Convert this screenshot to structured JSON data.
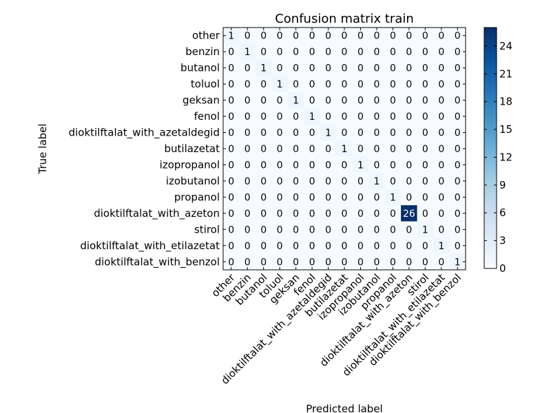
{
  "chart_data": {
    "type": "heatmap",
    "title": "Confusion matrix train",
    "xlabel": "Predicted label",
    "ylabel": "True label",
    "labels": [
      "other",
      "benzin",
      "butanol",
      "toluol",
      "geksan",
      "fenol",
      "dioktilftalat_with_azetaldegid",
      "butilazetat",
      "izopropanol",
      "izobutanol",
      "propanol",
      "dioktilftalat_with_azeton",
      "stirol",
      "dioktilftalat_with_etilazetat",
      "dioktilftalat_with_benzol"
    ],
    "matrix": [
      [
        1,
        0,
        0,
        0,
        0,
        0,
        0,
        0,
        0,
        0,
        0,
        0,
        0,
        0,
        0
      ],
      [
        0,
        1,
        0,
        0,
        0,
        0,
        0,
        0,
        0,
        0,
        0,
        0,
        0,
        0,
        0
      ],
      [
        0,
        0,
        1,
        0,
        0,
        0,
        0,
        0,
        0,
        0,
        0,
        0,
        0,
        0,
        0
      ],
      [
        0,
        0,
        0,
        1,
        0,
        0,
        0,
        0,
        0,
        0,
        0,
        0,
        0,
        0,
        0
      ],
      [
        0,
        0,
        0,
        0,
        1,
        0,
        0,
        0,
        0,
        0,
        0,
        0,
        0,
        0,
        0
      ],
      [
        0,
        0,
        0,
        0,
        0,
        1,
        0,
        0,
        0,
        0,
        0,
        0,
        0,
        0,
        0
      ],
      [
        0,
        0,
        0,
        0,
        0,
        0,
        1,
        0,
        0,
        0,
        0,
        0,
        0,
        0,
        0
      ],
      [
        0,
        0,
        0,
        0,
        0,
        0,
        0,
        1,
        0,
        0,
        0,
        0,
        0,
        0,
        0
      ],
      [
        0,
        0,
        0,
        0,
        0,
        0,
        0,
        0,
        1,
        0,
        0,
        0,
        0,
        0,
        0
      ],
      [
        0,
        0,
        0,
        0,
        0,
        0,
        0,
        0,
        0,
        1,
        0,
        0,
        0,
        0,
        0
      ],
      [
        0,
        0,
        0,
        0,
        0,
        0,
        0,
        0,
        0,
        0,
        1,
        0,
        0,
        0,
        0
      ],
      [
        0,
        0,
        0,
        0,
        0,
        0,
        0,
        0,
        0,
        0,
        0,
        26,
        0,
        0,
        0
      ],
      [
        0,
        0,
        0,
        0,
        0,
        0,
        0,
        0,
        0,
        0,
        0,
        0,
        1,
        0,
        0
      ],
      [
        0,
        0,
        0,
        0,
        0,
        0,
        0,
        0,
        0,
        0,
        0,
        0,
        0,
        1,
        0
      ],
      [
        0,
        0,
        0,
        0,
        0,
        0,
        0,
        0,
        0,
        0,
        0,
        0,
        0,
        0,
        1
      ]
    ],
    "colorbar": {
      "range": [
        0,
        26
      ],
      "ticks": [
        0,
        3,
        6,
        9,
        12,
        15,
        18,
        21,
        24
      ],
      "colormap": "Blues",
      "low_color": "#f7fbff",
      "high_color": "#08306b"
    }
  }
}
